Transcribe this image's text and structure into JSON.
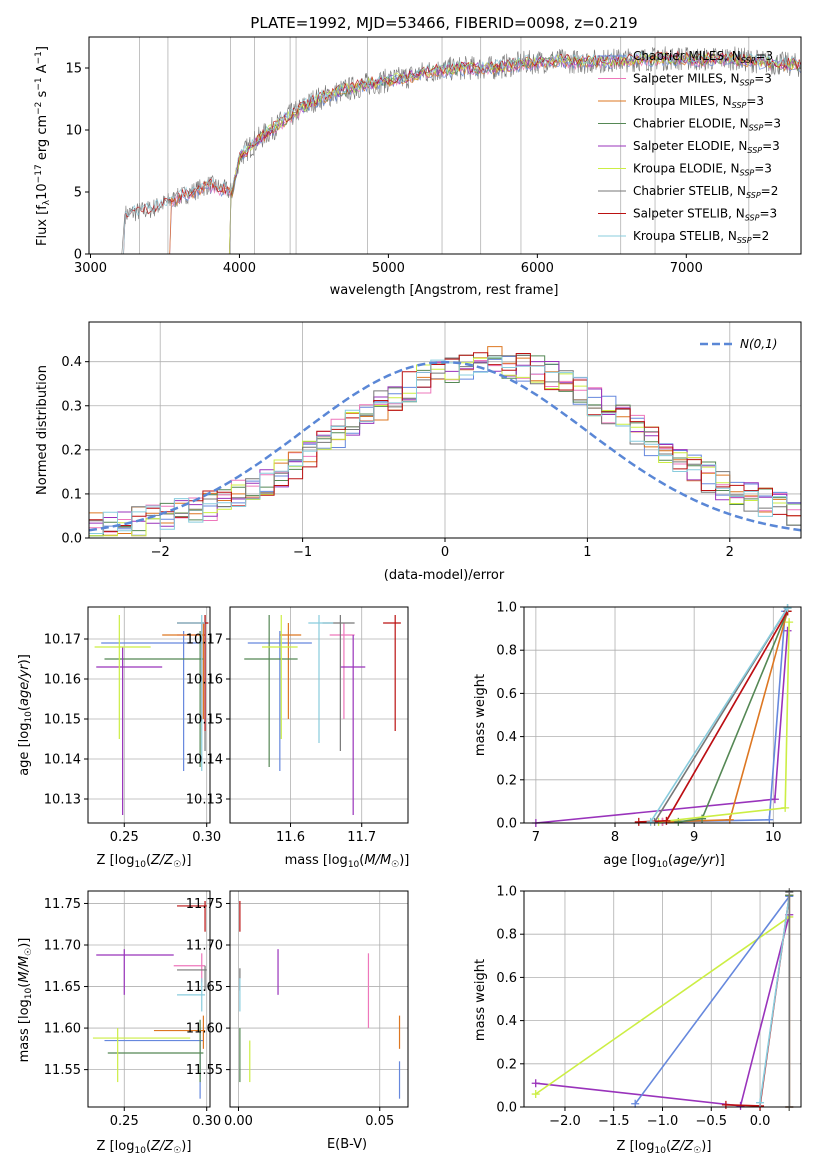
{
  "colors": {
    "chabrier_miles": "#6688dd",
    "salpeter_miles": "#ee77bb",
    "kroupa_miles": "#dd7722",
    "chabrier_elodie": "#558855",
    "salpeter_elodie": "#9933bb",
    "kroupa_elodie": "#ccee44",
    "chabrier_stelib": "#777777",
    "salpeter_stelib": "#bb1111",
    "kroupa_stelib": "#88ccdd",
    "normal_curve": "#5a87d6",
    "grid": "#b0b0b0"
  },
  "chart_data": [
    {
      "id": "spectrum",
      "type": "line",
      "title": "PLATE=1992, MJD=53466, FIBERID=0098, z=0.219",
      "xlabel": "wavelength [Angstrom, rest frame]",
      "ylabel": "Flux [f_λ 10^-17 erg cm^-2 s^-1 A^-1]",
      "xlim": [
        2990,
        7770
      ],
      "ylim": [
        0,
        17.5
      ],
      "xticks": [
        "3000",
        "4000",
        "5000",
        "6000",
        "7000"
      ],
      "yticks": [
        "0",
        "5",
        "10",
        "15"
      ],
      "grid": false,
      "legend_position": "top-right",
      "spectrum_start": 3210,
      "spectrum_end": 7770,
      "continuum": [
        [
          3210,
          0
        ],
        [
          3230,
          3.2
        ],
        [
          3400,
          3.6
        ],
        [
          3600,
          4.6
        ],
        [
          3800,
          5.6
        ],
        [
          3950,
          5.0
        ],
        [
          4000,
          7.8
        ],
        [
          4100,
          9.0
        ],
        [
          4300,
          10.8
        ],
        [
          4500,
          12.4
        ],
        [
          4700,
          13.2
        ],
        [
          4900,
          13.8
        ],
        [
          5100,
          14.2
        ],
        [
          5300,
          14.8
        ],
        [
          5500,
          15.0
        ],
        [
          5700,
          15.0
        ],
        [
          5900,
          15.4
        ],
        [
          6100,
          15.6
        ],
        [
          6300,
          15.5
        ],
        [
          6500,
          15.6
        ],
        [
          6700,
          15.7
        ],
        [
          6900,
          15.8
        ],
        [
          7100,
          15.7
        ],
        [
          7300,
          15.8
        ],
        [
          7500,
          15.5
        ],
        [
          7770,
          15.2
        ]
      ],
      "spikes": [
        3330,
        3520,
        3940,
        4100,
        4340,
        4380,
        4860,
        5360,
        5620,
        5890,
        6560,
        6790,
        7420
      ],
      "series_legend": [
        {
          "key": "chabrier_miles",
          "name": "Chabrier MILES, N_SSP=3"
        },
        {
          "key": "salpeter_miles",
          "name": "Salpeter MILES, N_SSP=3"
        },
        {
          "key": "kroupa_miles",
          "name": "Kroupa MILES, N_SSP=3"
        },
        {
          "key": "chabrier_elodie",
          "name": "Chabrier ELODIE, N_SSP=3"
        },
        {
          "key": "salpeter_elodie",
          "name": "Salpeter ELODIE, N_SSP=3"
        },
        {
          "key": "kroupa_elodie",
          "name": "Kroupa ELODIE, N_SSP=3"
        },
        {
          "key": "chabrier_stelib",
          "name": "Chabrier STELIB, N_SSP=2"
        },
        {
          "key": "salpeter_stelib",
          "name": "Salpeter STELIB, N_SSP=3"
        },
        {
          "key": "kroupa_stelib",
          "name": "Kroupa STELIB, N_SSP=2"
        }
      ]
    },
    {
      "id": "residuals",
      "type": "histogram",
      "xlabel": "(data-model)/error",
      "ylabel": "Normed distribution",
      "xlim": [
        -2.5,
        2.5
      ],
      "ylim": [
        0,
        0.49
      ],
      "xticks": [
        "−2",
        "−1",
        "0",
        "1",
        "2"
      ],
      "yticks": [
        "0.0",
        "0.1",
        "0.2",
        "0.3",
        "0.4"
      ],
      "grid": true,
      "legend_position": "top-right",
      "normal_label": "N(0,1)",
      "bin_width": 0.1,
      "bins_start": -2.5,
      "base_shift": 0.2,
      "series_order": [
        "chabrier_miles",
        "salpeter_miles",
        "kroupa_miles",
        "chabrier_elodie",
        "salpeter_elodie",
        "kroupa_elodie",
        "chabrier_stelib",
        "salpeter_stelib",
        "kroupa_stelib"
      ]
    },
    {
      "id": "age_vs_Z",
      "type": "errorbar",
      "xlabel": "Z [log10(Z/Z☉)]",
      "ylabel": "age [log10(age/yr)]",
      "xlim": [
        0.228,
        0.302
      ],
      "ylim": [
        10.124,
        10.178
      ],
      "xticks": [
        "0.25",
        "0.30"
      ],
      "yticks": [
        "10.13",
        "10.14",
        "10.15",
        "10.16",
        "10.17"
      ],
      "grid": true,
      "points": [
        {
          "key": "chabrier_miles",
          "x": 0.286,
          "y": 10.169,
          "xlo": 0.236,
          "xhi": 0.298,
          "ylo": 10.137,
          "yhi": 10.172
        },
        {
          "key": "salpeter_miles",
          "x": 0.297,
          "y": 10.171,
          "xlo": 0.282,
          "xhi": 0.299,
          "ylo": 10.15,
          "yhi": 10.174
        },
        {
          "key": "kroupa_miles",
          "x": 0.298,
          "y": 10.171,
          "xlo": 0.273,
          "xhi": 0.299,
          "ylo": 10.15,
          "yhi": 10.174
        },
        {
          "key": "chabrier_elodie",
          "x": 0.296,
          "y": 10.165,
          "xlo": 0.238,
          "xhi": 0.298,
          "ylo": 10.138,
          "yhi": 10.172
        },
        {
          "key": "salpeter_elodie",
          "x": 0.249,
          "y": 10.163,
          "xlo": 0.233,
          "xhi": 0.273,
          "ylo": 10.126,
          "yhi": 10.168
        },
        {
          "key": "kroupa_elodie",
          "x": 0.247,
          "y": 10.168,
          "xlo": 0.232,
          "xhi": 0.266,
          "ylo": 10.145,
          "yhi": 10.176
        },
        {
          "key": "chabrier_stelib",
          "x": 0.299,
          "y": 10.174,
          "xlo": 0.282,
          "xhi": 0.301,
          "ylo": 10.142,
          "yhi": 10.176
        },
        {
          "key": "salpeter_stelib",
          "x": 0.299,
          "y": 10.174,
          "xlo": 0.282,
          "xhi": 0.301,
          "ylo": 10.147,
          "yhi": 10.176
        },
        {
          "key": "kroupa_stelib",
          "x": 0.297,
          "y": 10.174,
          "xlo": 0.282,
          "xhi": 0.299,
          "ylo": 10.137,
          "yhi": 10.176
        }
      ]
    },
    {
      "id": "age_vs_mass",
      "type": "errorbar",
      "xlabel": "mass [log10(M/M☉)]",
      "ylabel": "",
      "xlim": [
        11.515,
        11.765
      ],
      "ylim": [
        10.124,
        10.178
      ],
      "xticks": [
        "11.6",
        "11.7"
      ],
      "yticks": [
        "10.13",
        "10.14",
        "10.15",
        "10.16",
        "10.17"
      ],
      "grid": true,
      "points": [
        {
          "key": "chabrier_miles",
          "x": 11.585,
          "y": 10.169,
          "xlo": 11.54,
          "xhi": 11.63,
          "ylo": 10.137,
          "yhi": 10.172
        },
        {
          "key": "salpeter_miles",
          "x": 11.675,
          "y": 10.171,
          "xlo": 11.655,
          "xhi": 11.69,
          "ylo": 10.15,
          "yhi": 10.174
        },
        {
          "key": "kroupa_miles",
          "x": 11.597,
          "y": 10.171,
          "xlo": 11.585,
          "xhi": 11.615,
          "ylo": 10.15,
          "yhi": 10.174
        },
        {
          "key": "chabrier_elodie",
          "x": 11.57,
          "y": 10.165,
          "xlo": 11.535,
          "xhi": 11.61,
          "ylo": 10.138,
          "yhi": 10.176
        },
        {
          "key": "salpeter_elodie",
          "x": 11.688,
          "y": 10.163,
          "xlo": 11.67,
          "xhi": 11.705,
          "ylo": 10.126,
          "yhi": 10.171
        },
        {
          "key": "kroupa_elodie",
          "x": 11.587,
          "y": 10.168,
          "xlo": 11.56,
          "xhi": 11.61,
          "ylo": 10.145,
          "yhi": 10.176
        },
        {
          "key": "chabrier_stelib",
          "x": 11.67,
          "y": 10.174,
          "xlo": 11.645,
          "xhi": 11.69,
          "ylo": 10.142,
          "yhi": 10.176
        },
        {
          "key": "salpeter_stelib",
          "x": 11.747,
          "y": 10.174,
          "xlo": 11.73,
          "xhi": 11.755,
          "ylo": 10.147,
          "yhi": 10.176
        },
        {
          "key": "kroupa_stelib",
          "x": 11.64,
          "y": 10.174,
          "xlo": 11.625,
          "xhi": 11.66,
          "ylo": 10.144,
          "yhi": 10.176
        }
      ]
    },
    {
      "id": "weight_vs_age",
      "type": "line",
      "xlabel": "age [log10(age/yr)]",
      "ylabel": "mass weight",
      "xlim": [
        6.85,
        10.35
      ],
      "ylim": [
        0,
        1
      ],
      "xticks": [
        "7",
        "8",
        "9",
        "10"
      ],
      "yticks": [
        "0.0",
        "0.2",
        "0.4",
        "0.6",
        "0.8",
        "1.0"
      ],
      "xtick_values": [
        7,
        8,
        9,
        10
      ],
      "ytick_values": [
        0,
        0.2,
        0.4,
        0.6,
        0.8,
        1.0
      ],
      "grid": true,
      "series": [
        {
          "key": "salpeter_elodie",
          "x": [
            7.0,
            10.02,
            10.18
          ],
          "y": [
            0.0,
            0.11,
            0.89
          ]
        },
        {
          "key": "chabrier_miles",
          "x": [
            8.6,
            9.95,
            10.15
          ],
          "y": [
            0.005,
            0.015,
            0.98
          ]
        },
        {
          "key": "kroupa_miles",
          "x": [
            8.6,
            9.45,
            10.18
          ],
          "y": [
            0.005,
            0.015,
            0.98
          ]
        },
        {
          "key": "salpeter_miles",
          "x": [
            8.6,
            8.65,
            10.18
          ],
          "y": [
            0.005,
            0.01,
            0.98
          ]
        },
        {
          "key": "chabrier_elodie",
          "x": [
            8.8,
            9.1,
            10.18
          ],
          "y": [
            0.005,
            0.02,
            0.98
          ]
        },
        {
          "key": "kroupa_elodie",
          "x": [
            8.55,
            10.15,
            10.2
          ],
          "y": [
            0.005,
            0.07,
            0.93
          ]
        },
        {
          "key": "chabrier_stelib",
          "x": [
            8.5,
            10.18
          ],
          "y": [
            0.005,
            0.995
          ]
        },
        {
          "key": "salpeter_stelib",
          "x": [
            8.3,
            8.65,
            10.18
          ],
          "y": [
            0.005,
            0.01,
            0.98
          ]
        },
        {
          "key": "kroupa_stelib",
          "x": [
            8.45,
            10.18
          ],
          "y": [
            0.005,
            0.995
          ]
        }
      ]
    },
    {
      "id": "mass_vs_Z",
      "type": "errorbar",
      "xlabel": "Z [log10(Z/Z☉)]",
      "ylabel": "mass [log10(M/M☉)]",
      "xlim": [
        0.228,
        0.302
      ],
      "ylim": [
        11.505,
        11.765
      ],
      "xticks": [
        "0.25",
        "0.30"
      ],
      "yticks": [
        "11.55",
        "11.60",
        "11.65",
        "11.70",
        "11.75"
      ],
      "grid": true,
      "points": [
        {
          "key": "chabrier_miles",
          "x": 0.296,
          "y": 11.585,
          "xlo": 0.238,
          "xhi": 0.298,
          "ylo": 11.515,
          "yhi": 11.6
        },
        {
          "key": "salpeter_miles",
          "x": 0.297,
          "y": 11.675,
          "xlo": 0.28,
          "xhi": 0.299,
          "ylo": 11.655,
          "yhi": 11.69
        },
        {
          "key": "kroupa_miles",
          "x": 0.298,
          "y": 11.597,
          "xlo": 0.268,
          "xhi": 0.299,
          "ylo": 11.575,
          "yhi": 11.615
        },
        {
          "key": "chabrier_elodie",
          "x": 0.296,
          "y": 11.57,
          "xlo": 0.24,
          "xhi": 0.298,
          "ylo": 11.535,
          "yhi": 11.61
        },
        {
          "key": "salpeter_elodie",
          "x": 0.25,
          "y": 11.688,
          "xlo": 0.233,
          "xhi": 0.28,
          "ylo": 11.64,
          "yhi": 11.695
        },
        {
          "key": "kroupa_elodie",
          "x": 0.246,
          "y": 11.588,
          "xlo": 0.231,
          "xhi": 0.29,
          "ylo": 11.535,
          "yhi": 11.6
        },
        {
          "key": "chabrier_stelib",
          "x": 0.299,
          "y": 11.67,
          "xlo": 0.282,
          "xhi": 0.3,
          "ylo": 11.645,
          "yhi": 11.675
        },
        {
          "key": "salpeter_stelib",
          "x": 0.299,
          "y": 11.747,
          "xlo": 0.282,
          "xhi": 0.3,
          "ylo": 11.716,
          "yhi": 11.753
        },
        {
          "key": "kroupa_stelib",
          "x": 0.297,
          "y": 11.64,
          "xlo": 0.282,
          "xhi": 0.299,
          "ylo": 11.62,
          "yhi": 11.66
        }
      ]
    },
    {
      "id": "mass_vs_ebv",
      "type": "errorbar",
      "xlabel": "E(B-V)",
      "ylabel": "",
      "xlim": [
        -0.003,
        0.06
      ],
      "ylim": [
        11.505,
        11.765
      ],
      "xticks": [
        "0.00",
        "0.05"
      ],
      "yticks": [
        "11.55",
        "11.60",
        "11.65",
        "11.70",
        "11.75"
      ],
      "grid": true,
      "points": [
        {
          "key": "chabrier_miles",
          "x": 0.057,
          "y": 11.54,
          "xlo": 0.057,
          "xhi": 0.057,
          "ylo": 11.515,
          "yhi": 11.56
        },
        {
          "key": "salpeter_miles",
          "x": 0.046,
          "y": 11.64,
          "xlo": 0.046,
          "xhi": 0.046,
          "ylo": 11.6,
          "yhi": 11.69
        },
        {
          "key": "kroupa_miles",
          "x": 0.057,
          "y": 11.597,
          "xlo": 0.057,
          "xhi": 0.057,
          "ylo": 11.575,
          "yhi": 11.615
        },
        {
          "key": "chabrier_elodie",
          "x": 0.0005,
          "y": 11.565,
          "xlo": 0.0005,
          "xhi": 0.0005,
          "ylo": 11.535,
          "yhi": 11.6
        },
        {
          "key": "salpeter_elodie",
          "x": 0.014,
          "y": 11.67,
          "xlo": 0.014,
          "xhi": 0.014,
          "ylo": 11.64,
          "yhi": 11.695
        },
        {
          "key": "kroupa_elodie",
          "x": 0.004,
          "y": 11.56,
          "xlo": 0.004,
          "xhi": 0.004,
          "ylo": 11.535,
          "yhi": 11.585
        },
        {
          "key": "chabrier_stelib",
          "x": 0.0005,
          "y": 11.66,
          "xlo": 0.0005,
          "xhi": 0.0005,
          "ylo": 11.645,
          "yhi": 11.672
        },
        {
          "key": "salpeter_stelib",
          "x": 0.0005,
          "y": 11.735,
          "xlo": 0.0005,
          "xhi": 0.0005,
          "ylo": 11.716,
          "yhi": 11.753
        },
        {
          "key": "kroupa_stelib",
          "x": 0.0005,
          "y": 11.64,
          "xlo": 0.0005,
          "xhi": 0.0005,
          "ylo": 11.62,
          "yhi": 11.66
        }
      ]
    },
    {
      "id": "weight_vs_Z",
      "type": "line",
      "xlabel": "Z [log10(Z/Z☉)]",
      "ylabel": "mass weight",
      "xlim": [
        -2.42,
        0.42
      ],
      "ylim": [
        0,
        1
      ],
      "xticks": [
        "−2.0",
        "−1.5",
        "−1.0",
        "−0.5",
        "0.0"
      ],
      "yticks": [
        "0.0",
        "0.2",
        "0.4",
        "0.6",
        "0.8",
        "1.0"
      ],
      "xtick_values": [
        -2.0,
        -1.5,
        -1.0,
        -0.5,
        0.0
      ],
      "ytick_values": [
        0,
        0.2,
        0.4,
        0.6,
        0.8,
        1.0
      ],
      "grid": true,
      "series": [
        {
          "key": "salpeter_elodie",
          "x": [
            -2.3,
            -0.2,
            0.3
          ],
          "y": [
            0.11,
            0.005,
            0.89
          ]
        },
        {
          "key": "kroupa_elodie",
          "x": [
            -2.3,
            0.3
          ],
          "y": [
            0.06,
            0.88
          ]
        },
        {
          "key": "chabrier_miles",
          "x": [
            -1.28,
            0.3
          ],
          "y": [
            0.015,
            0.975
          ]
        },
        {
          "key": "salpeter_stelib",
          "x": [
            -0.35,
            0.0,
            0.3
          ],
          "y": [
            0.01,
            0.005,
            0.98
          ]
        },
        {
          "key": "kroupa_stelib",
          "x": [
            0.0,
            0.3
          ],
          "y": [
            0.02,
            0.98
          ]
        },
        {
          "key": "salpeter_miles",
          "x": [
            0.3,
            0.3
          ],
          "y": [
            0.0,
            0.98
          ]
        },
        {
          "key": "kroupa_miles",
          "x": [
            0.3,
            0.3
          ],
          "y": [
            0.0,
            0.98
          ]
        },
        {
          "key": "chabrier_elodie",
          "x": [
            0.3,
            0.3
          ],
          "y": [
            0.0,
            0.98
          ]
        },
        {
          "key": "chabrier_stelib",
          "x": [
            0.3,
            0.3
          ],
          "y": [
            0.0,
            0.995
          ]
        }
      ]
    }
  ]
}
